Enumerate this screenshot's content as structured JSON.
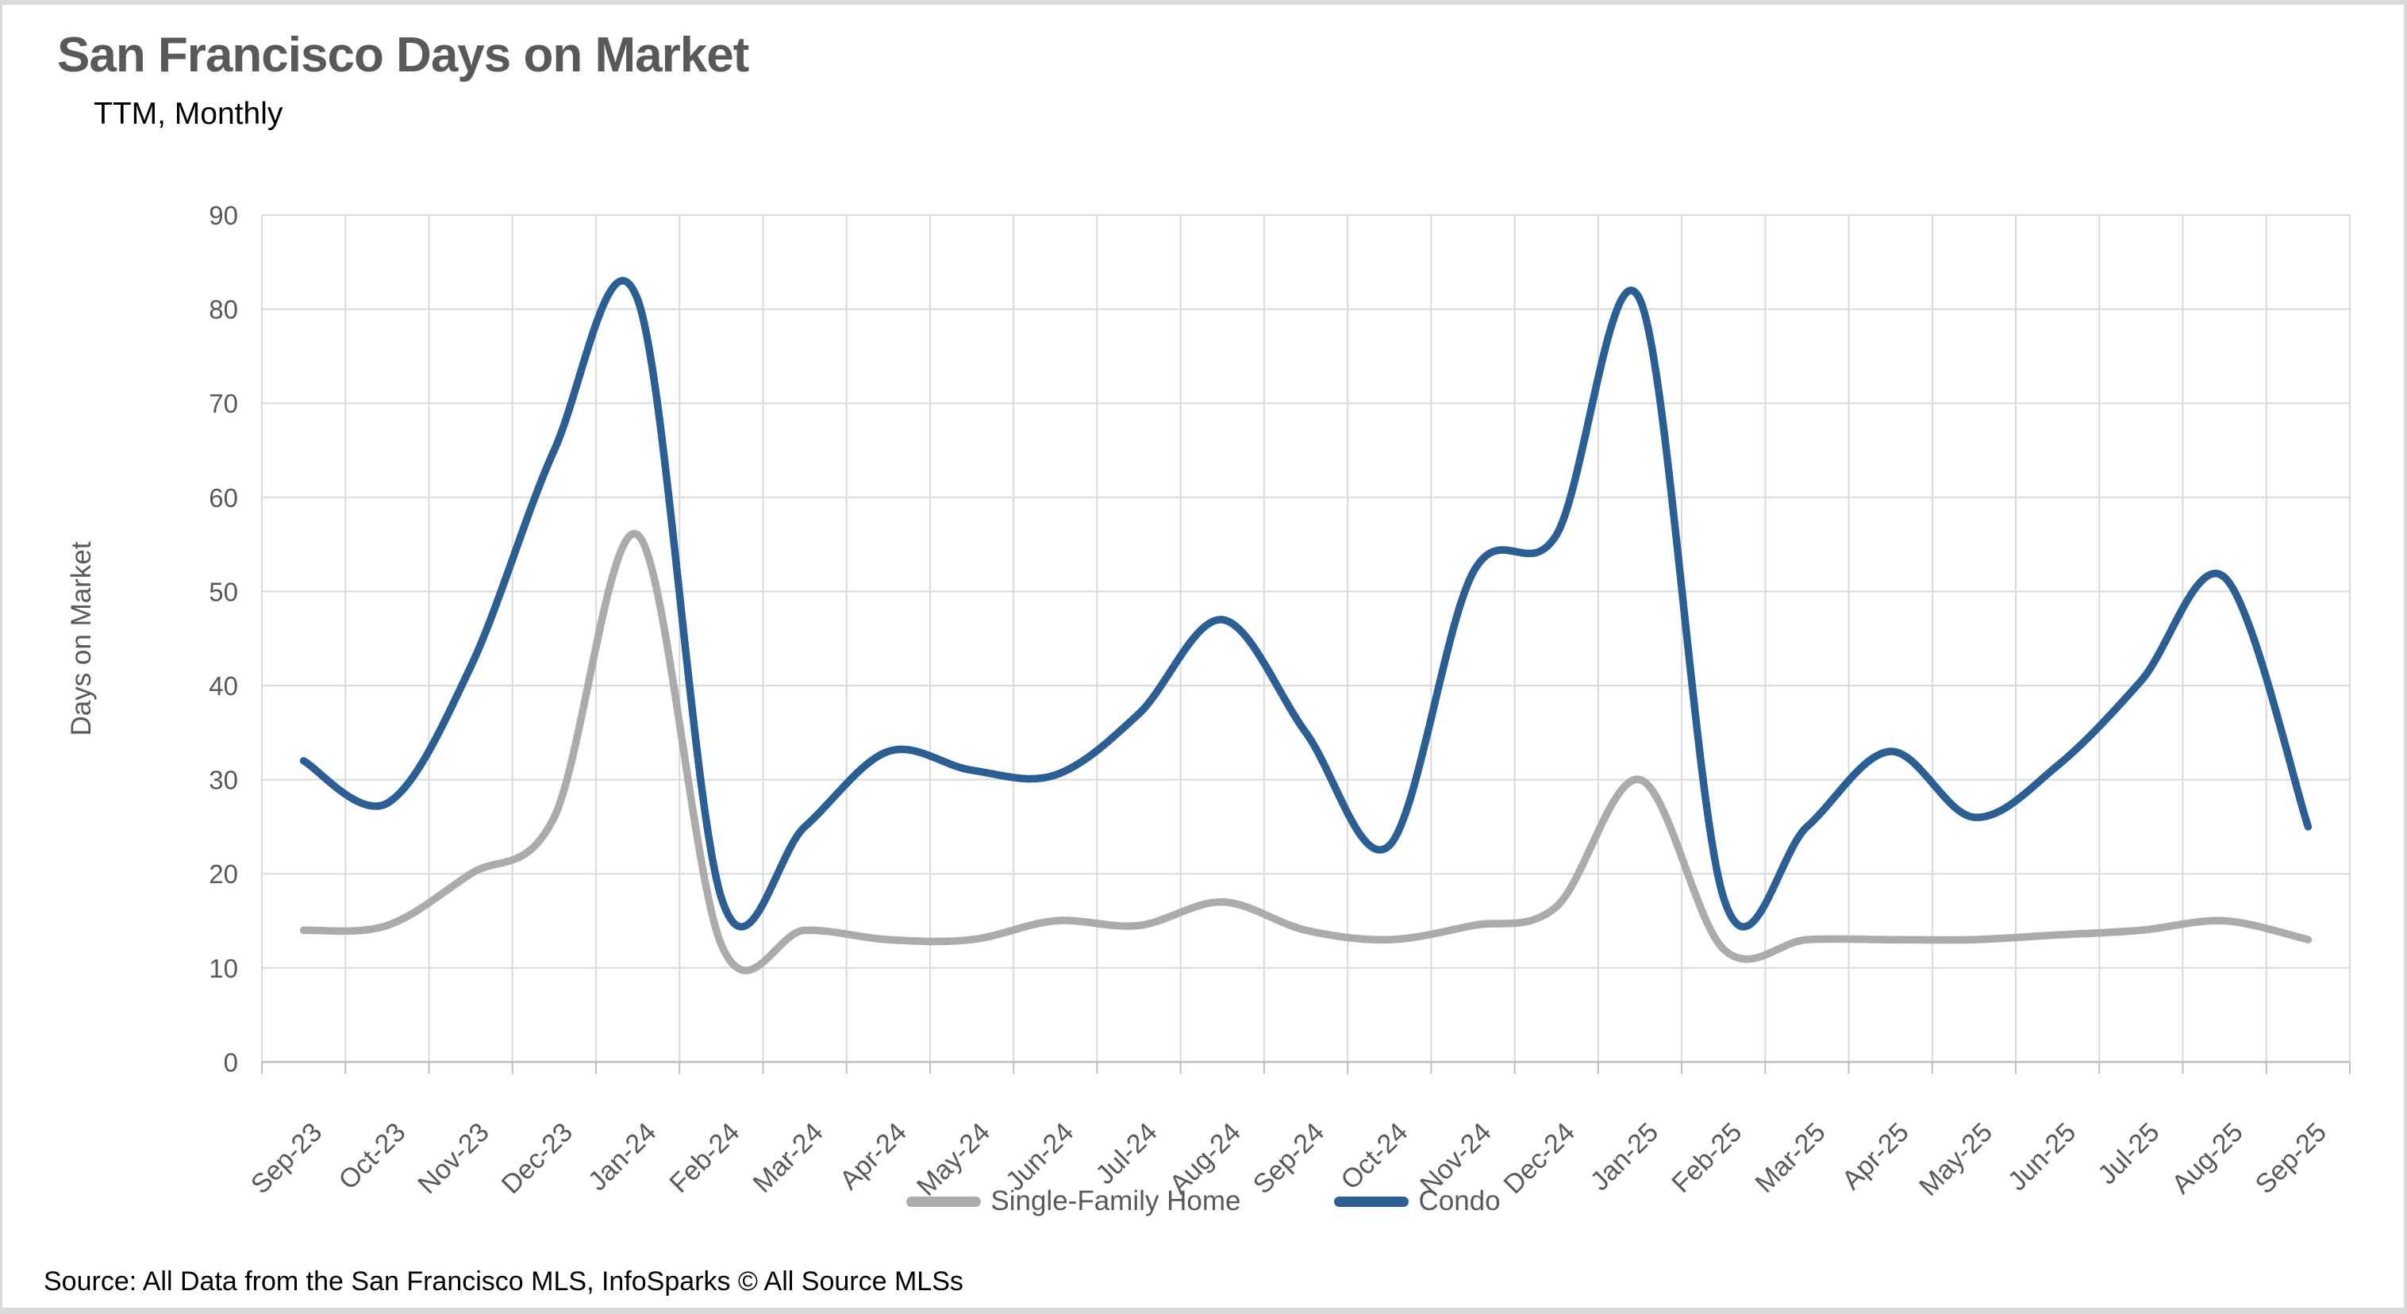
{
  "header": {
    "title": "San Francisco Days on Market",
    "subtitle": "TTM, Monthly"
  },
  "source": "Source: All Data from the San Francisco MLS, InfoSparks © All Source MLSs",
  "colors": {
    "condo_line": "#2B5F94",
    "single_family_line": "#ABABAB",
    "gridline": "#D9D9D9",
    "axis_line": "#BFBFBF",
    "axis_text": "#595959",
    "title_text": "#595959"
  },
  "chart_data": {
    "type": "line",
    "title": "San Francisco Days on Market",
    "subtitle": "TTM, Monthly",
    "xlabel": "",
    "ylabel": "Days on Market",
    "ylim": [
      0,
      90
    ],
    "ytick_step": 10,
    "ytick_labels": [
      "0",
      "10",
      "20",
      "30",
      "40",
      "50",
      "60",
      "70",
      "80",
      "90"
    ],
    "grid": true,
    "smooth_lines": true,
    "legend_position": "bottom",
    "categories": [
      "Sep-23",
      "Oct-23",
      "Nov-23",
      "Dec-23",
      "Jan-24",
      "Feb-24",
      "Mar-24",
      "Apr-24",
      "May-24",
      "Jun-24",
      "Jul-24",
      "Aug-24",
      "Sep-24",
      "Oct-24",
      "Nov-24",
      "Dec-24",
      "Jan-25",
      "Feb-25",
      "Mar-25",
      "Apr-25",
      "May-25",
      "Jun-25",
      "Jul-25",
      "Aug-25",
      "Sep-25"
    ],
    "series": [
      {
        "name": "Single-Family Home",
        "color": "#ABABAB",
        "values": [
          14,
          14.5,
          20,
          26,
          56,
          12.5,
          14,
          13,
          13,
          15,
          14.5,
          17,
          14,
          13,
          14.5,
          16.5,
          30,
          12,
          13,
          13,
          13,
          13.5,
          14,
          15,
          13
        ]
      },
      {
        "name": "Condo",
        "color": "#2B5F94",
        "values": [
          32,
          27.5,
          42,
          65,
          81,
          17.5,
          25,
          33,
          31,
          30.5,
          37,
          47,
          35,
          23,
          52,
          56,
          81,
          17.5,
          25,
          33,
          26,
          31.5,
          40.5,
          51.5,
          25
        ]
      }
    ]
  }
}
